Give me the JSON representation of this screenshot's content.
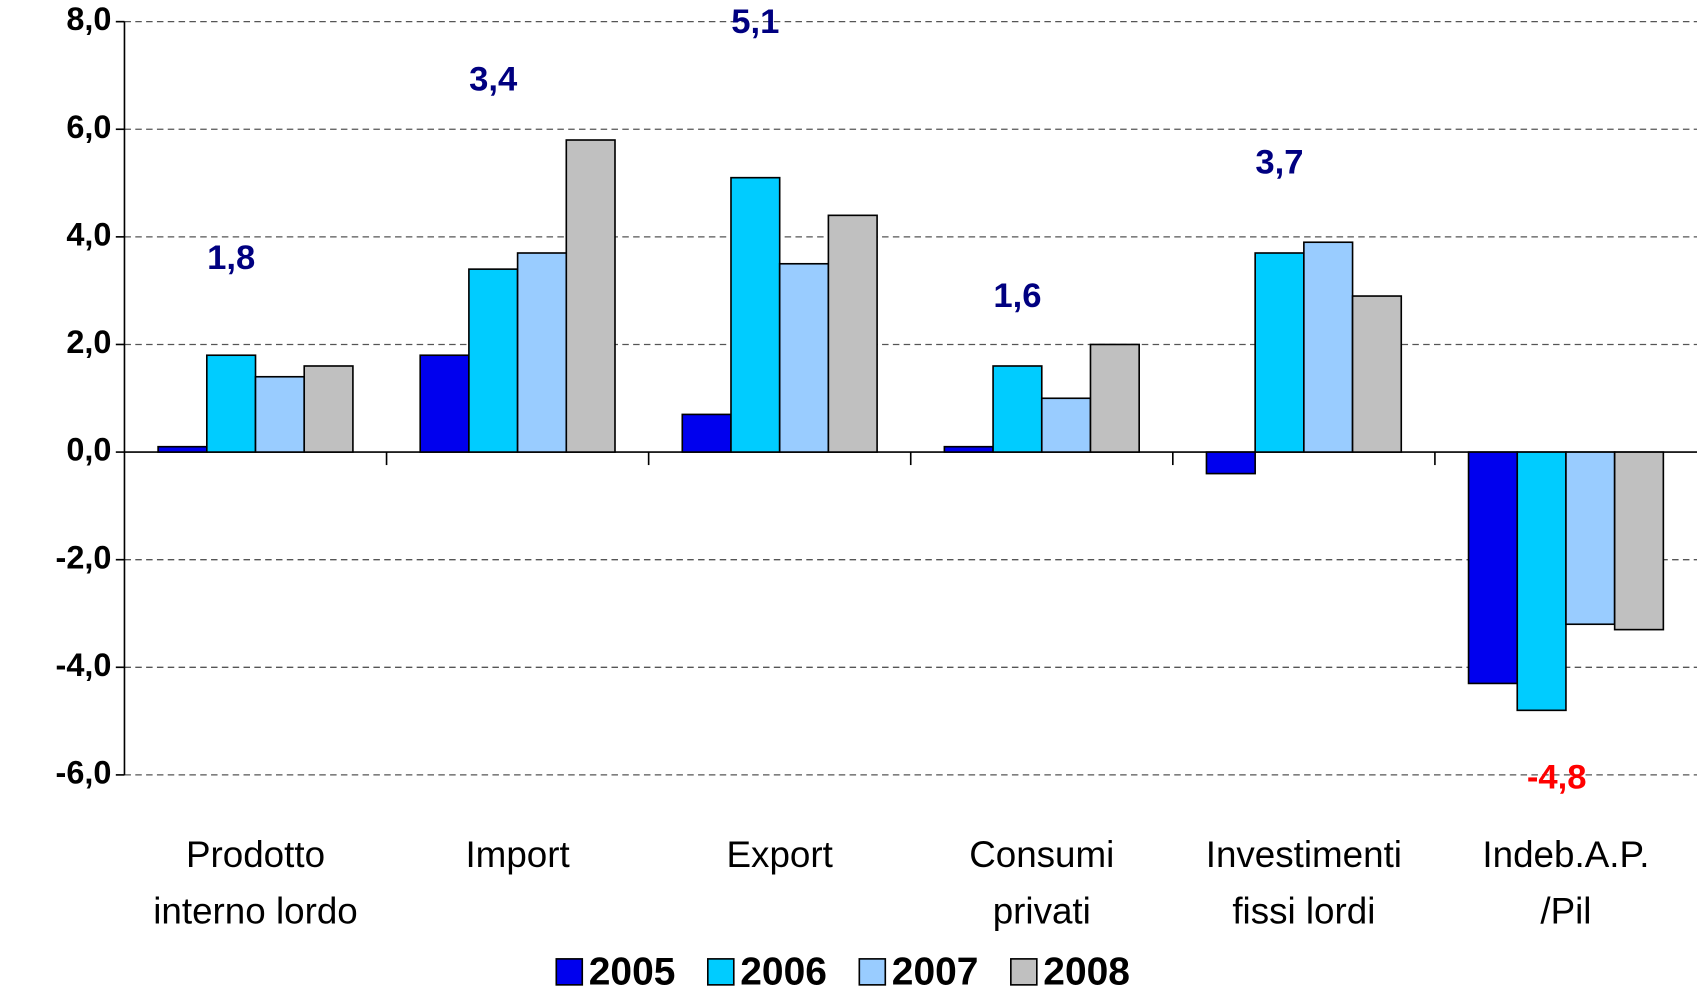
{
  "chart_data": {
    "type": "bar",
    "categories": [
      [
        "Prodotto",
        "interno lordo"
      ],
      [
        "Import"
      ],
      [
        "Export"
      ],
      [
        "Consumi",
        "privati"
      ],
      [
        "Investimenti",
        "fissi lordi"
      ],
      [
        "Indeb.A.P.",
        "/Pil"
      ]
    ],
    "series": [
      {
        "name": "2005",
        "color": "#0000ee",
        "values": [
          0.1,
          1.8,
          0.7,
          0.1,
          -0.4,
          -4.3
        ]
      },
      {
        "name": "2006",
        "color": "#00ccff",
        "values": [
          1.8,
          3.4,
          5.1,
          1.6,
          3.7,
          -4.8
        ],
        "value_labels": [
          "1,8",
          "3,4",
          "5,1",
          "1,6",
          "3,7",
          "-4,8"
        ]
      },
      {
        "name": "2007",
        "color": "#99ccff",
        "values": [
          1.4,
          3.7,
          3.5,
          1.0,
          3.9,
          -3.2
        ]
      },
      {
        "name": "2008",
        "color": "#c0c0c0",
        "values": [
          1.6,
          5.8,
          4.4,
          2.0,
          2.9,
          -3.3
        ]
      }
    ],
    "ylim": [
      -6,
      8
    ],
    "yticks": [
      {
        "value": -6,
        "label": "-6,0"
      },
      {
        "value": -4,
        "label": "-4,0"
      },
      {
        "value": -2,
        "label": "-2,0"
      },
      {
        "value": 0,
        "label": "0,0"
      },
      {
        "value": 2,
        "label": "2,0"
      },
      {
        "value": 4,
        "label": "4,0"
      },
      {
        "value": 6,
        "label": "6,0"
      },
      {
        "value": 8,
        "label": "8,0"
      }
    ],
    "grid": true,
    "legend": "bottom"
  }
}
